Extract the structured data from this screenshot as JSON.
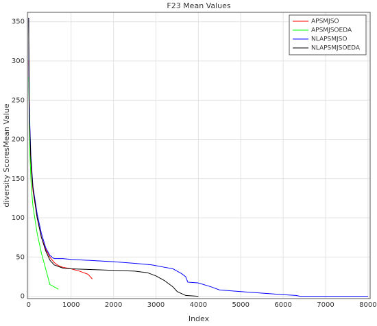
{
  "chart_data": {
    "type": "line",
    "title": "F23 Mean Values",
    "x_label": "Index",
    "y_label": "diversity ScoresMean Value",
    "xlim": [
      -30,
      8050
    ],
    "ylim": [
      -3,
      362
    ],
    "xticks": [
      0,
      1000,
      2000,
      3000,
      4000,
      5000,
      6000,
      7000,
      8000
    ],
    "yticks": [
      0,
      50,
      100,
      150,
      200,
      250,
      300,
      350
    ],
    "grid": true,
    "legend": "upper-right",
    "series": [
      {
        "name": "APSMJSO",
        "color": "#ff0000",
        "x": [
          0,
          20,
          50,
          100,
          200,
          300,
          400,
          500,
          600,
          700,
          800,
          1000,
          1200,
          1400,
          1500
        ],
        "values": [
          300,
          220,
          170,
          135,
          100,
          75,
          60,
          50,
          43,
          39,
          37,
          35,
          32,
          28,
          22
        ]
      },
      {
        "name": "APSMJSOEDA",
        "color": "#00ff00",
        "x": [
          0,
          30,
          60,
          100,
          200,
          300,
          400,
          500,
          600,
          700
        ],
        "values": [
          280,
          180,
          140,
          115,
          80,
          55,
          35,
          15,
          12,
          9
        ]
      },
      {
        "name": "NLAPSMJSO",
        "color": "#0000ff",
        "x": [
          0,
          10,
          50,
          100,
          200,
          300,
          400,
          500,
          600,
          800,
          1000,
          2000,
          2500,
          2900,
          3000,
          3200,
          3400,
          3500,
          3600,
          3700,
          3750,
          4000,
          4300,
          4500,
          5000,
          5500,
          6000,
          6300,
          6400,
          8000
        ],
        "values": [
          355,
          250,
          180,
          140,
          105,
          80,
          62,
          52,
          48,
          48,
          47,
          44,
          42,
          40,
          39,
          37,
          35,
          32,
          29,
          25,
          18,
          17,
          12,
          8,
          6,
          4,
          2,
          1,
          0,
          0
        ]
      },
      {
        "name": "NLAPSMJSOEDA",
        "color": "#000000",
        "x": [
          0,
          10,
          50,
          100,
          200,
          300,
          400,
          500,
          600,
          800,
          1000,
          1500,
          2000,
          2500,
          2800,
          3000,
          3200,
          3400,
          3500,
          3700,
          4000
        ],
        "values": [
          355,
          240,
          175,
          138,
          100,
          75,
          58,
          46,
          40,
          36,
          35,
          34,
          33,
          32,
          30,
          26,
          20,
          12,
          6,
          1,
          0
        ]
      }
    ]
  }
}
